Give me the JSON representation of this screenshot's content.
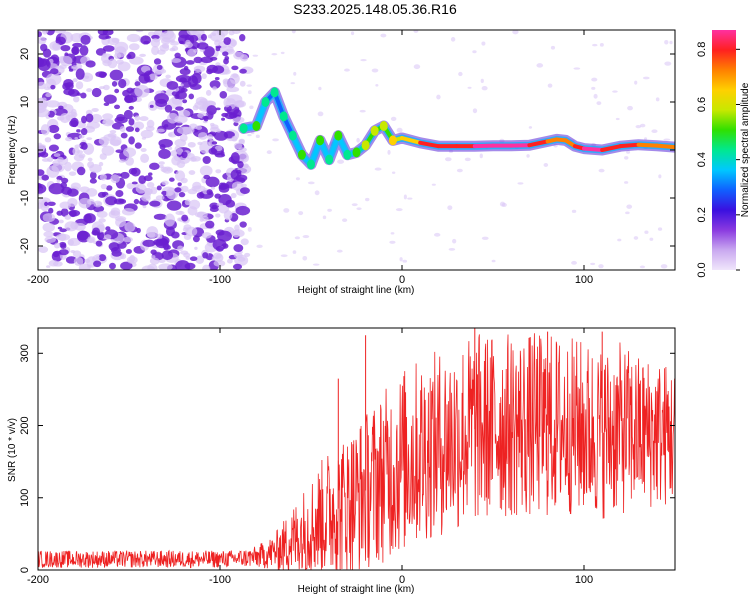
{
  "title": "S233.2025.148.05.36.R16",
  "colors": {
    "snr_line": "#ee2222",
    "ridge": "#ee2222",
    "speckle_dark": "#6a1fd0",
    "speckle_light": "#d8c4f5"
  },
  "chart_data": [
    {
      "type": "heatmap",
      "name": "spectrogram",
      "xlabel": "Height of straight line (km)",
      "ylabel": "Frequency (Hz)",
      "xlim": [
        -200,
        150
      ],
      "ylim": [
        -25,
        25
      ],
      "x_ticks": [
        -200,
        -100,
        0,
        100
      ],
      "y_ticks": [
        20,
        10,
        0,
        -10,
        -20
      ],
      "colorbar": {
        "label": "Normalized spectral amplitude",
        "range": [
          0.0,
          0.87
        ],
        "ticks": [
          "0.0",
          "0.2",
          "0.4",
          "0.6",
          "0.8"
        ],
        "colormap": [
          "#f0e6fb",
          "#c9a8f0",
          "#8a3ae0",
          "#3a10e0",
          "#1060ff",
          "#00c8ff",
          "#00e890",
          "#30e000",
          "#c8e800",
          "#ffd000",
          "#ff8000",
          "#ff2020",
          "#ff30a0"
        ]
      },
      "ridge": {
        "x": [
          -87,
          -80,
          -75,
          -70,
          -65,
          -60,
          -55,
          -50,
          -45,
          -40,
          -35,
          -30,
          -25,
          -20,
          -15,
          -10,
          -5,
          0,
          10,
          20,
          30,
          40,
          50,
          60,
          70,
          80,
          85,
          90,
          95,
          100,
          110,
          120,
          130,
          140,
          150
        ],
        "y": [
          4.5,
          5,
          10,
          12,
          7,
          3,
          -1,
          -3,
          2,
          -2,
          3,
          -1,
          -0.5,
          1,
          4,
          5,
          2,
          2.5,
          1.5,
          0.8,
          0.8,
          0.8,
          0.9,
          0.9,
          1.0,
          1.8,
          2.2,
          2.0,
          0.8,
          0.3,
          0.0,
          0.8,
          1.1,
          0.9,
          0.6
        ],
        "amplitude": [
          0.35,
          0.4,
          0.3,
          0.35,
          0.3,
          0.35,
          0.4,
          0.35,
          0.4,
          0.35,
          0.4,
          0.35,
          0.4,
          0.45,
          0.5,
          0.45,
          0.55,
          0.6,
          0.75,
          0.8,
          0.8,
          0.85,
          0.85,
          0.87,
          0.82,
          0.75,
          0.72,
          0.7,
          0.75,
          0.85,
          0.82,
          0.78,
          0.75,
          0.72,
          0.7
        ]
      },
      "noise_extent_x": [
        -200,
        -85
      ]
    },
    {
      "type": "line",
      "name": "snr",
      "xlabel": "Height of straight line (km)",
      "ylabel": "SNR (10 * v/v)",
      "xlim": [
        -200,
        150
      ],
      "ylim": [
        0,
        335
      ],
      "x_ticks": [
        -200,
        -100,
        0,
        100
      ],
      "y_ticks": [
        0,
        100,
        200,
        300
      ],
      "envelope": {
        "x": [
          -200,
          -180,
          -160,
          -140,
          -120,
          -100,
          -90,
          -80,
          -70,
          -60,
          -50,
          -40,
          -30,
          -20,
          -10,
          0,
          10,
          20,
          30,
          40,
          50,
          60,
          70,
          80,
          90,
          100,
          110,
          120,
          130,
          140,
          150
        ],
        "mean": [
          15,
          15,
          15,
          15,
          15,
          15,
          16,
          18,
          25,
          40,
          60,
          80,
          90,
          110,
          130,
          150,
          165,
          175,
          185,
          195,
          200,
          200,
          200,
          200,
          200,
          195,
          190,
          195,
          190,
          190,
          185
        ],
        "amplitude": [
          12,
          12,
          12,
          12,
          12,
          12,
          12,
          15,
          25,
          50,
          70,
          90,
          100,
          110,
          120,
          130,
          130,
          130,
          135,
          135,
          130,
          130,
          130,
          130,
          125,
          125,
          120,
          120,
          110,
          105,
          100
        ]
      },
      "peaks": [
        {
          "x": -20,
          "y": 325
        },
        {
          "x": -35,
          "y": 265
        },
        {
          "x": 40,
          "y": 335
        },
        {
          "x": 80,
          "y": 330
        },
        {
          "x": 110,
          "y": 330
        }
      ]
    }
  ]
}
